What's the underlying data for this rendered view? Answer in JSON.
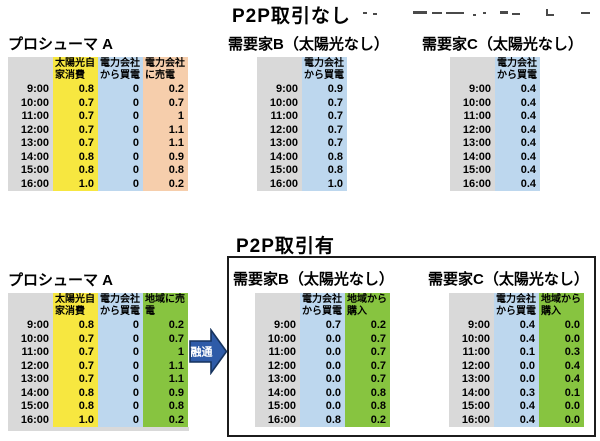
{
  "titles": {
    "no_p2p": "P2P取引なし",
    "with_p2p": "P2P取引有"
  },
  "arrow": {
    "label": "融通"
  },
  "colors": {
    "yellow": "#F7E740",
    "blue": "#BDD7EE",
    "orange": "#F6CEAC",
    "green": "#87C440",
    "gray": "#D9D9D9",
    "arrow_fill": "#2E5BA8",
    "arrow_border": "#16335E",
    "box_border": "#1C1C1C"
  },
  "tables": {
    "top_a": {
      "title": "プロシューマ A",
      "columns": [
        {
          "label": "",
          "color": "gray"
        },
        {
          "label": "太陽光自家消費",
          "color": "yellow"
        },
        {
          "label": "電力会社から買電",
          "color": "blue"
        },
        {
          "label": "電力会社に売電",
          "color": "orange"
        }
      ],
      "rows": [
        [
          "9:00",
          "0.8",
          "0",
          "0.2"
        ],
        [
          "10:00",
          "0.7",
          "0",
          "0.7"
        ],
        [
          "11:00",
          "0.7",
          "0",
          "1"
        ],
        [
          "12:00",
          "0.7",
          "0",
          "1.1"
        ],
        [
          "13:00",
          "0.7",
          "0",
          "1.1"
        ],
        [
          "14:00",
          "0.8",
          "0",
          "0.9"
        ],
        [
          "15:00",
          "0.8",
          "0",
          "0.8"
        ],
        [
          "16:00",
          "1.0",
          "0",
          "0.2"
        ]
      ]
    },
    "top_b": {
      "title": "需要家B（太陽光なし）",
      "columns": [
        {
          "label": "",
          "color": "gray"
        },
        {
          "label": "電力会社から買電",
          "color": "blue"
        }
      ],
      "rows": [
        [
          "9:00",
          "0.9"
        ],
        [
          "10:00",
          "0.7"
        ],
        [
          "11:00",
          "0.7"
        ],
        [
          "12:00",
          "0.7"
        ],
        [
          "13:00",
          "0.7"
        ],
        [
          "14:00",
          "0.8"
        ],
        [
          "15:00",
          "0.8"
        ],
        [
          "16:00",
          "1.0"
        ]
      ]
    },
    "top_c": {
      "title": "需要家C（太陽光なし）",
      "columns": [
        {
          "label": "",
          "color": "gray"
        },
        {
          "label": "電力会社から買電",
          "color": "blue"
        }
      ],
      "rows": [
        [
          "9:00",
          "0.4"
        ],
        [
          "10:00",
          "0.4"
        ],
        [
          "11:00",
          "0.4"
        ],
        [
          "12:00",
          "0.4"
        ],
        [
          "13:00",
          "0.4"
        ],
        [
          "14:00",
          "0.4"
        ],
        [
          "15:00",
          "0.4"
        ],
        [
          "16:00",
          "0.4"
        ]
      ]
    },
    "bottom_a": {
      "title": "プロシューマ A",
      "columns": [
        {
          "label": "",
          "color": "gray"
        },
        {
          "label": "太陽光自家消費",
          "color": "yellow"
        },
        {
          "label": "電力会社から買電",
          "color": "blue"
        },
        {
          "label": "地域に売電",
          "color": "green"
        }
      ],
      "rows": [
        [
          "9:00",
          "0.8",
          "0",
          "0.2"
        ],
        [
          "10:00",
          "0.7",
          "0",
          "0.7"
        ],
        [
          "11:00",
          "0.7",
          "0",
          "1"
        ],
        [
          "12:00",
          "0.7",
          "0",
          "1.1"
        ],
        [
          "13:00",
          "0.7",
          "0",
          "1.1"
        ],
        [
          "14:00",
          "0.8",
          "0",
          "0.9"
        ],
        [
          "15:00",
          "0.8",
          "0",
          "0.8"
        ],
        [
          "16:00",
          "1.0",
          "0",
          "0.2"
        ]
      ]
    },
    "bottom_b": {
      "title": "需要家B（太陽光なし）",
      "columns": [
        {
          "label": "",
          "color": "gray"
        },
        {
          "label": "電力会社から買電",
          "color": "blue"
        },
        {
          "label": "地域から購入",
          "color": "green"
        }
      ],
      "rows": [
        [
          "9:00",
          "0.7",
          "0.2"
        ],
        [
          "10:00",
          "0.0",
          "0.7"
        ],
        [
          "11:00",
          "0.0",
          "0.7"
        ],
        [
          "12:00",
          "0.0",
          "0.7"
        ],
        [
          "13:00",
          "0.0",
          "0.7"
        ],
        [
          "14:00",
          "0.0",
          "0.8"
        ],
        [
          "15:00",
          "0.0",
          "0.8"
        ],
        [
          "16:00",
          "0.8",
          "0.2"
        ]
      ]
    },
    "bottom_c": {
      "title": "需要家C（太陽光なし）",
      "columns": [
        {
          "label": "",
          "color": "gray"
        },
        {
          "label": "電力会社から買電",
          "color": "blue"
        },
        {
          "label": "地域から購入",
          "color": "green"
        }
      ],
      "rows": [
        [
          "9:00",
          "0.4",
          "0.0"
        ],
        [
          "10:00",
          "0.4",
          "0.0"
        ],
        [
          "11:00",
          "0.1",
          "0.3"
        ],
        [
          "12:00",
          "0.0",
          "0.4"
        ],
        [
          "13:00",
          "0.0",
          "0.4"
        ],
        [
          "14:00",
          "0.3",
          "0.1"
        ],
        [
          "15:00",
          "0.4",
          "0.0"
        ],
        [
          "16:00",
          "0.4",
          "0.0"
        ]
      ]
    }
  }
}
